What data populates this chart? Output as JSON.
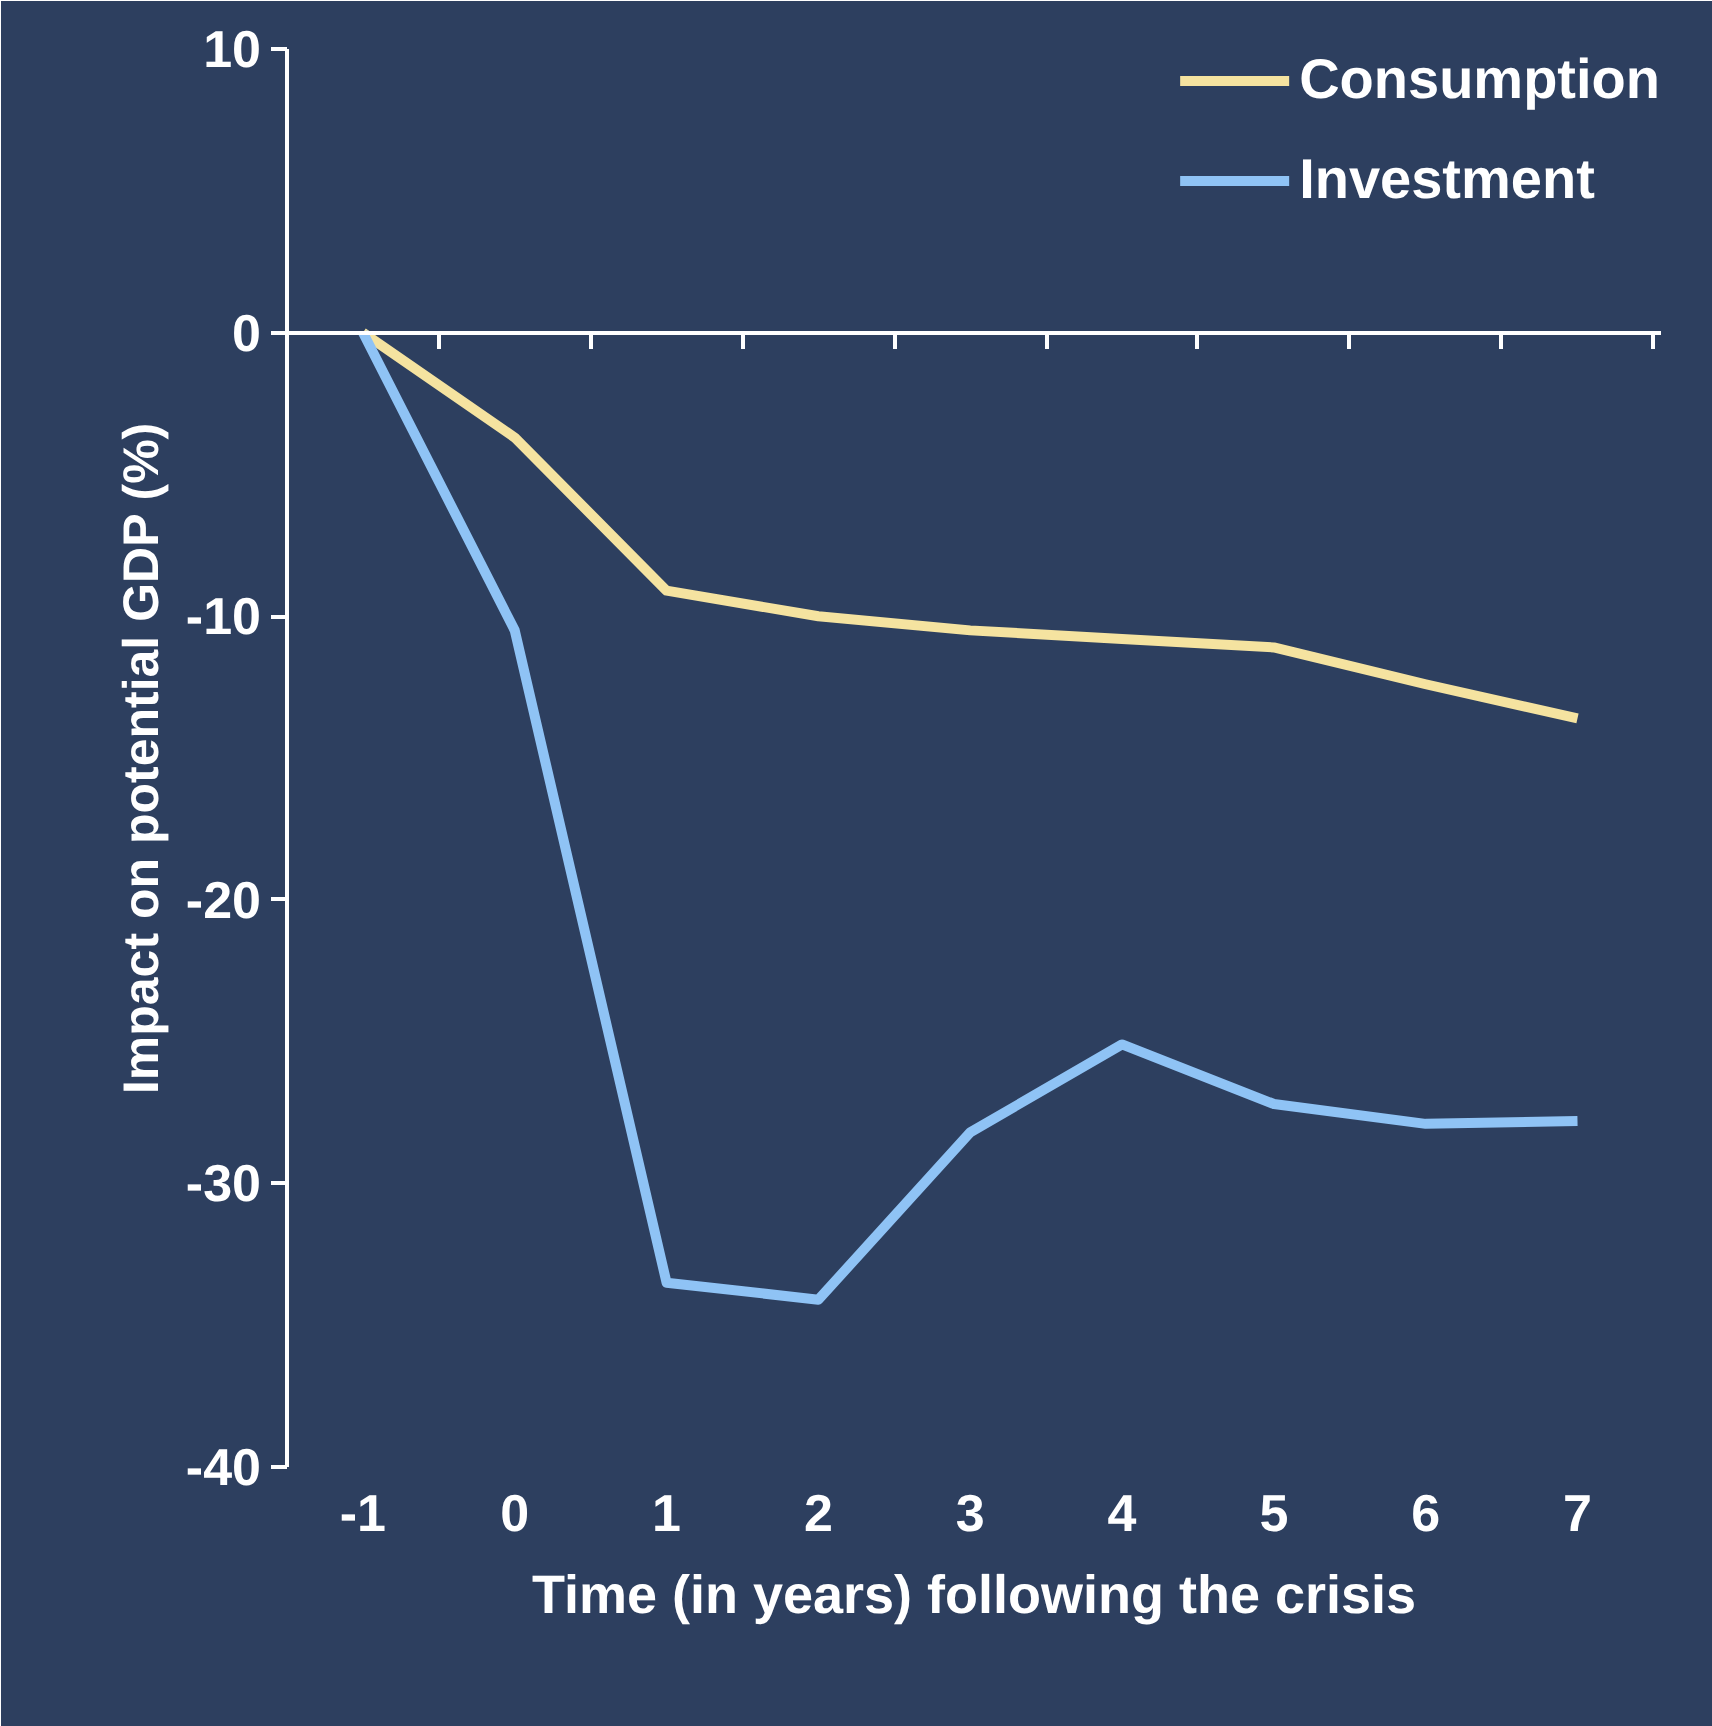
{
  "chart_data": {
    "type": "line",
    "xlabel": "Time (in years) following the crisis",
    "ylabel": "Impact on potential GDP (%)",
    "categories": [
      "-1",
      "0",
      "1",
      "2",
      "3",
      "4",
      "5",
      "6",
      "7"
    ],
    "series": [
      {
        "name": "Consumption",
        "color": "#f5e3a0",
        "values": [
          0,
          -3.7,
          -9.1,
          -10.0,
          -10.5,
          -10.8,
          -11.1,
          -12.4,
          -13.6
        ]
      },
      {
        "name": "Investment",
        "color": "#8fc3f5",
        "values": [
          0,
          -10.5,
          -33.5,
          -34.1,
          -28.2,
          -25.1,
          -27.2,
          -27.9,
          -27.8
        ]
      }
    ],
    "ylim": [
      -40,
      10
    ],
    "yticks": [
      -40,
      -30,
      -20,
      -10,
      0,
      10
    ],
    "legend": "top right",
    "marker": "none",
    "line_style": "solid"
  }
}
